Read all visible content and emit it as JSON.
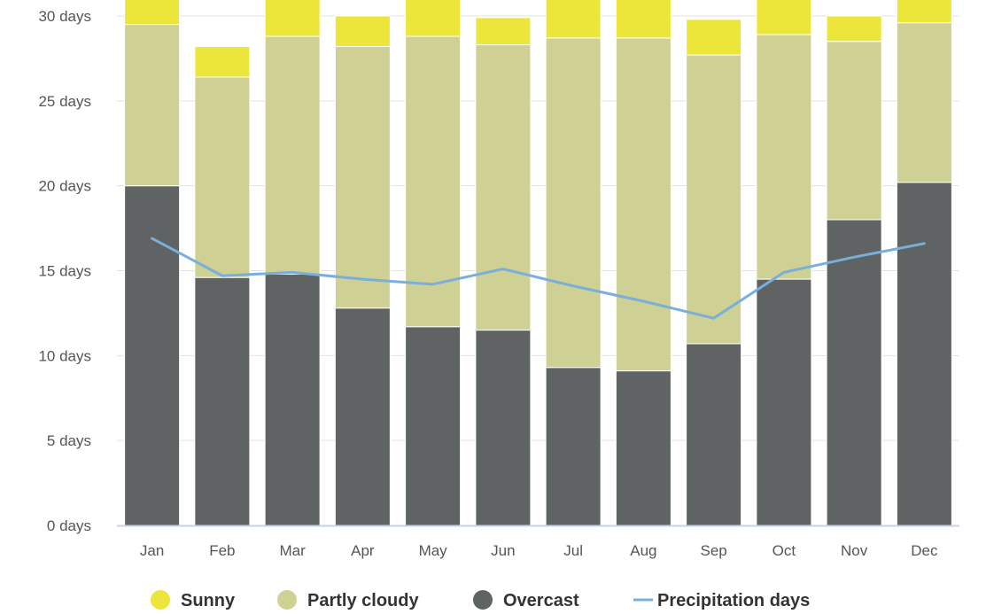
{
  "chart_data": {
    "type": "bar",
    "stacked": true,
    "categories": [
      "Jan",
      "Feb",
      "Mar",
      "Apr",
      "May",
      "Jun",
      "Jul",
      "Aug",
      "Sep",
      "Oct",
      "Nov",
      "Dec"
    ],
    "series": [
      {
        "name": "Overcast",
        "kind": "bar",
        "color": "#5f6363",
        "values": [
          20.0,
          14.6,
          14.8,
          12.8,
          11.7,
          11.5,
          9.3,
          9.1,
          10.7,
          14.5,
          18.0,
          20.2
        ]
      },
      {
        "name": "Partly cloudy",
        "kind": "bar",
        "color": "#cfd093",
        "values": [
          9.5,
          11.8,
          14.0,
          15.4,
          17.1,
          16.8,
          19.4,
          19.6,
          17.0,
          14.4,
          10.5,
          9.4
        ]
      },
      {
        "name": "Sunny",
        "kind": "bar",
        "color": "#ede63a",
        "values": [
          1.5,
          1.8,
          2.2,
          1.8,
          2.2,
          1.6,
          2.3,
          2.3,
          2.1,
          2.1,
          1.5,
          1.4
        ]
      },
      {
        "name": "Precipitation days",
        "kind": "line",
        "color": "#7aaedb",
        "values": [
          16.9,
          14.7,
          14.9,
          14.5,
          14.2,
          15.1,
          14.1,
          13.2,
          12.2,
          14.9,
          15.8,
          16.6
        ]
      }
    ],
    "ylim": [
      0,
      30
    ],
    "yticks": [
      0,
      5,
      10,
      15,
      20,
      25,
      30
    ],
    "ytick_suffix": " days",
    "grid": true,
    "legend_position": "bottom"
  }
}
